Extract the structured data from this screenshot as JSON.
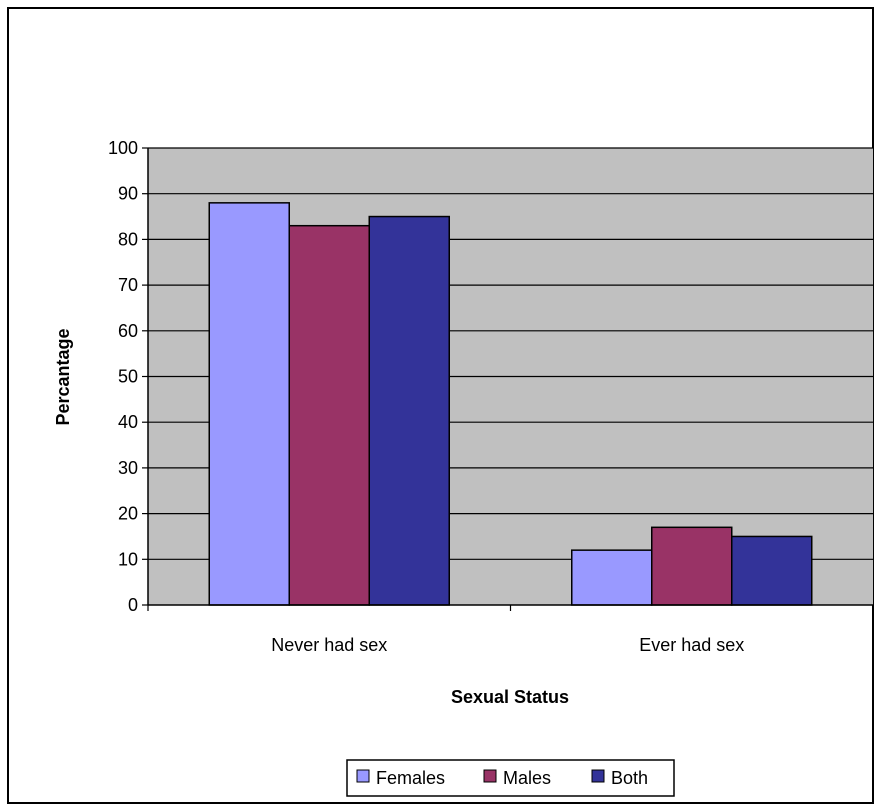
{
  "chart_data": {
    "type": "bar",
    "title": "",
    "xlabel": "Sexual Status",
    "ylabel": "Percantage",
    "categories": [
      "Never had sex",
      "Ever had sex"
    ],
    "series": [
      {
        "name": "Females",
        "color": "#9999ff",
        "values": [
          88,
          12
        ]
      },
      {
        "name": "Males",
        "color": "#993366",
        "values": [
          83,
          17
        ]
      },
      {
        "name": "Both",
        "color": "#333399",
        "values": [
          85,
          15
        ]
      }
    ],
    "ylim": [
      0,
      100
    ],
    "yticks": [
      "0",
      "10",
      "20",
      "30",
      "40",
      "50",
      "60",
      "70",
      "80",
      "90",
      "100"
    ],
    "grid": true,
    "plot_background": "#c0c0c0",
    "legend_position": "bottom"
  }
}
